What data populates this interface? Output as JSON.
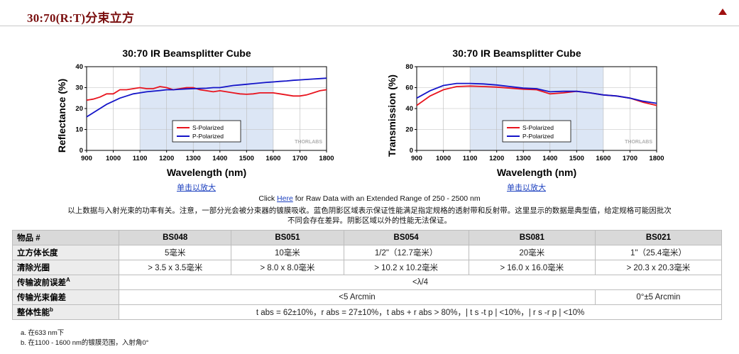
{
  "header": {
    "title": "30:70(R:T)分束立方"
  },
  "chart_data": [
    {
      "type": "line",
      "title": "30:70 IR Beamsplitter Cube",
      "xlabel": "Wavelength (nm)",
      "ylabel": "Reflectance (%)",
      "xlim": [
        900,
        1800
      ],
      "ylim": [
        0,
        40
      ],
      "xticks": [
        900,
        1000,
        1100,
        1200,
        1300,
        1400,
        1500,
        1600,
        1700,
        1800
      ],
      "yticks": [
        0,
        10,
        20,
        30,
        40
      ],
      "shaded_region": [
        1100,
        1600
      ],
      "legend_position": "bottom-center",
      "watermark": "THORLABS",
      "series": [
        {
          "name": "S-Polarized",
          "color": "#e8141e",
          "x": [
            900,
            925,
            950,
            975,
            1000,
            1025,
            1050,
            1075,
            1100,
            1125,
            1150,
            1175,
            1200,
            1225,
            1250,
            1275,
            1300,
            1325,
            1350,
            1375,
            1400,
            1425,
            1450,
            1475,
            1500,
            1525,
            1550,
            1575,
            1600,
            1625,
            1650,
            1675,
            1700,
            1725,
            1750,
            1775,
            1800
          ],
          "y": [
            24,
            24.5,
            25.5,
            27,
            27,
            29,
            29,
            29.5,
            30,
            29.5,
            29.5,
            30.5,
            30,
            29,
            29.5,
            30,
            30,
            29,
            28.5,
            28,
            28.5,
            28,
            27.5,
            27,
            26.8,
            27,
            27.5,
            27.5,
            27.5,
            27,
            26.5,
            26,
            26,
            26.5,
            27.5,
            28.5,
            29
          ]
        },
        {
          "name": "P-Polarized",
          "color": "#1414c8",
          "x": [
            900,
            925,
            950,
            975,
            1000,
            1025,
            1050,
            1075,
            1100,
            1125,
            1150,
            1175,
            1200,
            1225,
            1250,
            1275,
            1300,
            1325,
            1350,
            1375,
            1400,
            1425,
            1450,
            1475,
            1500,
            1525,
            1550,
            1575,
            1600,
            1625,
            1650,
            1675,
            1700,
            1725,
            1750,
            1775,
            1800
          ],
          "y": [
            16,
            18,
            20,
            22,
            23.5,
            25,
            26,
            27,
            27.5,
            28,
            28.3,
            28.6,
            29,
            29,
            29.2,
            29.4,
            29.5,
            29.6,
            29.7,
            30,
            30,
            30.5,
            31,
            31.3,
            31.6,
            31.9,
            32.2,
            32.5,
            32.7,
            33,
            33.2,
            33.5,
            33.7,
            33.9,
            34.1,
            34.3,
            34.5
          ]
        }
      ]
    },
    {
      "type": "line",
      "title": "30:70 IR Beamsplitter Cube",
      "xlabel": "Wavelength (nm)",
      "ylabel": "Transmission (%)",
      "xlim": [
        900,
        1800
      ],
      "ylim": [
        0,
        80
      ],
      "xticks": [
        900,
        1000,
        1100,
        1200,
        1300,
        1400,
        1500,
        1600,
        1700,
        1800
      ],
      "yticks": [
        0,
        20,
        40,
        60,
        80
      ],
      "shaded_region": [
        1100,
        1600
      ],
      "legend_position": "bottom-center",
      "watermark": "THORLABS",
      "series": [
        {
          "name": "S-Polarized",
          "color": "#e8141e",
          "x": [
            900,
            950,
            1000,
            1050,
            1100,
            1150,
            1200,
            1250,
            1300,
            1350,
            1375,
            1400,
            1450,
            1500,
            1550,
            1600,
            1650,
            1700,
            1750,
            1800
          ],
          "y": [
            43,
            52,
            58,
            61,
            61.5,
            61,
            60.5,
            59.5,
            58.5,
            58,
            56,
            54,
            55,
            56.5,
            55,
            53,
            52,
            50,
            46,
            43
          ]
        },
        {
          "name": "P-Polarized",
          "color": "#1414c8",
          "x": [
            900,
            950,
            1000,
            1050,
            1100,
            1150,
            1200,
            1250,
            1300,
            1350,
            1375,
            1400,
            1450,
            1500,
            1550,
            1600,
            1650,
            1700,
            1750,
            1800
          ],
          "y": [
            50,
            57,
            62,
            64,
            64,
            63.5,
            62.5,
            61,
            59.5,
            59,
            57.5,
            56,
            56.5,
            56.5,
            55,
            53,
            52,
            50,
            47,
            45
          ]
        }
      ]
    }
  ],
  "enlarge_link": "单击以放大",
  "note": {
    "prefix": "Click ",
    "link": "Here",
    "suffix": " for Raw Data with an Extended Range of 250 - 2500 nm",
    "line1": "以上数据与入射光束的功率有关。注意，一部分光会被分束器的镀膜吸收。蓝色阴影区域表示保证性能满足指定规格的透射带和反射带。这里显示的数据是典型值，给定规格可能因批次",
    "line2": "不同会存在差异。阴影区域以外的性能无法保证。"
  },
  "table": {
    "header": [
      "物品 #",
      "BS048",
      "BS051",
      "BS054",
      "BS081",
      "BS021"
    ],
    "rows": [
      {
        "label": "立方体长度",
        "cells": [
          "5毫米",
          "10毫米",
          "1/2\"（12.7毫米）",
          "20毫米",
          "1\"（25.4毫米）"
        ]
      },
      {
        "label": "清除光圈",
        "cells": [
          "> 3.5 x 3.5毫米",
          "> 8.0 x 8.0毫米",
          "> 10.2 x 10.2毫米",
          "> 16.0 x 16.0毫米",
          "> 20.3 x 20.3毫米"
        ]
      }
    ],
    "wavefront": {
      "label": "传输波前误差",
      "sup": "A",
      "value": "<λ/4"
    },
    "deviation": {
      "label": "传输光束偏差",
      "value_a": "<5 Arcmin",
      "value_b": "0°±5 Arcmin"
    },
    "performance": {
      "label": "整体性能",
      "sup": "b",
      "value": "t abs = 62±10%，r abs = 27±10%，t abs + r abs > 80%，| t s -t p | <10%，| r s -r p | <10%"
    }
  },
  "footnotes": {
    "a": "a. 在633 nm下",
    "b": "b. 在1100 - 1600 nm的镀膜范围，入射角0°"
  }
}
